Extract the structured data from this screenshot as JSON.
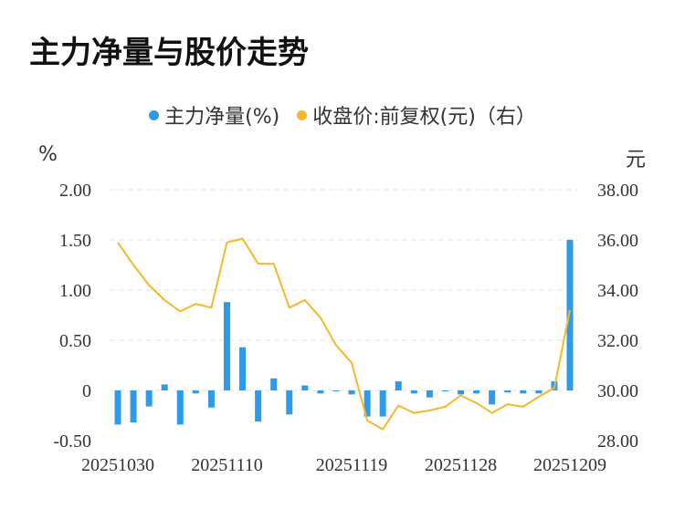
{
  "title": "主力净量与股价走势",
  "legend": {
    "left_label": "主力净量(%)",
    "right_label": "收盘价:前复权(元)（右）"
  },
  "units": {
    "left": "%",
    "right": "元"
  },
  "colors": {
    "bar": "#2e9bea",
    "line": "#f5b82a",
    "grid": "#e3e3e3",
    "text": "#333333"
  },
  "chart_data": {
    "type": "bar+line",
    "title": "主力净量与股价走势",
    "x_tick_labels": [
      "20251030",
      "20251110",
      "20251119",
      "20251128",
      "20251209"
    ],
    "left_axis": {
      "ticks": [
        "2.00",
        "1.50",
        "1.00",
        "0.50",
        "0",
        "-0.50"
      ],
      "ylim": [
        -0.5,
        2.0
      ]
    },
    "right_axis": {
      "ticks": [
        "38.00",
        "36.00",
        "34.00",
        "32.00",
        "30.00",
        "28.00"
      ],
      "ylim": [
        28.0,
        38.0
      ]
    },
    "grid": true,
    "legend_position": "top-center",
    "series": [
      {
        "name": "主力净量(%)",
        "type": "bar",
        "axis": "left",
        "values": [
          -0.34,
          -0.32,
          -0.16,
          0.06,
          -0.34,
          -0.03,
          -0.17,
          0.88,
          0.43,
          -0.31,
          0.12,
          -0.24,
          0.05,
          -0.03,
          0.0,
          -0.04,
          -0.26,
          -0.26,
          0.09,
          -0.03,
          -0.07,
          -0.01,
          -0.04,
          -0.03,
          -0.14,
          -0.02,
          -0.03,
          -0.03,
          0.09,
          1.5
        ]
      },
      {
        "name": "收盘价:前复权(元)（右）",
        "type": "line",
        "axis": "right",
        "values": [
          35.9,
          35.0,
          34.2,
          33.6,
          33.15,
          33.45,
          33.3,
          35.9,
          36.05,
          35.05,
          35.05,
          33.3,
          33.6,
          32.9,
          31.8,
          31.1,
          28.8,
          28.45,
          29.4,
          29.1,
          29.2,
          29.35,
          29.8,
          29.5,
          29.1,
          29.45,
          29.35,
          29.75,
          30.1,
          33.2
        ]
      }
    ]
  }
}
